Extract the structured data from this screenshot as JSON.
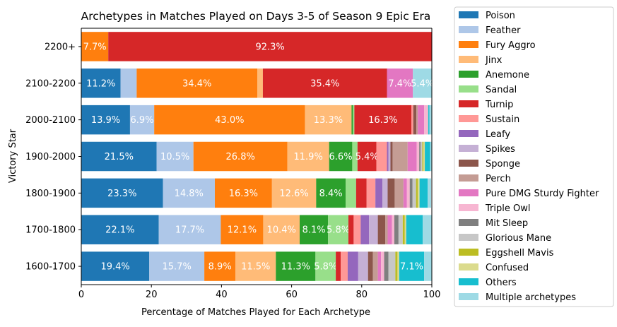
{
  "chart_data": {
    "type": "bar",
    "orientation": "horizontal",
    "stacked": true,
    "title": "Archetypes in Matches Played on Days 3-5 of Season 9 Epic Era",
    "xlabel": "Percentage of Matches Played for Each Archetype",
    "ylabel": "Victory Star",
    "xlim": [
      0,
      100
    ],
    "xticks": [
      "0",
      "20",
      "40",
      "60",
      "80",
      "100"
    ],
    "legend_position": "outside-right",
    "label_threshold": 5,
    "categories": [
      "2200+",
      "2100-2200",
      "2000-2100",
      "1900-2000",
      "1800-1900",
      "1700-1800",
      "1600-1700"
    ],
    "series": [
      {
        "name": "Poison",
        "color": "#1f77b4",
        "values": [
          0,
          11.2,
          13.9,
          21.5,
          23.3,
          22.1,
          19.4
        ]
      },
      {
        "name": "Feather",
        "color": "#aec7e8",
        "values": [
          0,
          4.6,
          6.9,
          10.5,
          14.8,
          17.7,
          15.7
        ]
      },
      {
        "name": "Fury Aggro",
        "color": "#ff7f0e",
        "values": [
          7.7,
          34.4,
          43.0,
          26.8,
          16.3,
          12.1,
          8.9
        ]
      },
      {
        "name": "Jinx",
        "color": "#ffbb78",
        "values": [
          0,
          1.6,
          13.3,
          11.9,
          12.6,
          10.4,
          11.5
        ]
      },
      {
        "name": "Anemone",
        "color": "#2ca02c",
        "values": [
          0,
          0,
          0.4,
          6.6,
          8.4,
          8.1,
          11.3
        ]
      },
      {
        "name": "Sandal",
        "color": "#98df8a",
        "values": [
          0,
          0,
          0.4,
          1.5,
          3.0,
          5.8,
          5.8
        ]
      },
      {
        "name": "Turnip",
        "color": "#d62728",
        "values": [
          92.3,
          35.4,
          16.3,
          5.4,
          3.0,
          1.5,
          1.4
        ]
      },
      {
        "name": "Sustain",
        "color": "#ff9896",
        "values": [
          0,
          0,
          0.5,
          3.0,
          2.5,
          2.0,
          2.0
        ]
      },
      {
        "name": "Leafy",
        "color": "#9467bd",
        "values": [
          0,
          0,
          0,
          0.4,
          2.0,
          2.4,
          3.0
        ]
      },
      {
        "name": "Spikes",
        "color": "#c5b0d5",
        "values": [
          0,
          0,
          0,
          0.6,
          1.5,
          2.5,
          2.8
        ]
      },
      {
        "name": "Sponge",
        "color": "#8c564b",
        "values": [
          0,
          0,
          0.9,
          0.6,
          2.0,
          2.1,
          1.4
        ]
      },
      {
        "name": "Perch",
        "color": "#c49c94",
        "values": [
          0,
          0,
          0.4,
          4.3,
          2.5,
          0.7,
          1.4
        ]
      },
      {
        "name": "Pure DMG Sturdy Fighter",
        "color": "#e377c2",
        "values": [
          0,
          7.4,
          1.8,
          2.6,
          1.0,
          1.2,
          0.9
        ]
      },
      {
        "name": "Triple Owl",
        "color": "#f7b6d2",
        "values": [
          0,
          0,
          1.0,
          0.7,
          0.8,
          0.7,
          0.9
        ]
      },
      {
        "name": "Mit Sleep",
        "color": "#7f7f7f",
        "values": [
          0,
          0,
          0,
          0.4,
          0.8,
          1.2,
          1.2
        ]
      },
      {
        "name": "Glorious Mane",
        "color": "#c7c7c7",
        "values": [
          0,
          0,
          0.2,
          0.5,
          1.0,
          1.2,
          2.0
        ]
      },
      {
        "name": "Eggshell Mavis",
        "color": "#bcbd22",
        "values": [
          0,
          0,
          0,
          0.3,
          0.5,
          0.6,
          0.6
        ]
      },
      {
        "name": "Confused",
        "color": "#dbdb8d",
        "values": [
          0,
          0,
          0,
          0.4,
          0.5,
          0.4,
          0.5
        ]
      },
      {
        "name": "Others",
        "color": "#17becf",
        "values": [
          0,
          0,
          0.3,
          1.5,
          2.3,
          4.7,
          7.1
        ]
      },
      {
        "name": "Multiple archetypes",
        "color": "#9edae5",
        "values": [
          0,
          5.4,
          0.7,
          2.0,
          1.0,
          2.6,
          2.6
        ]
      }
    ]
  }
}
